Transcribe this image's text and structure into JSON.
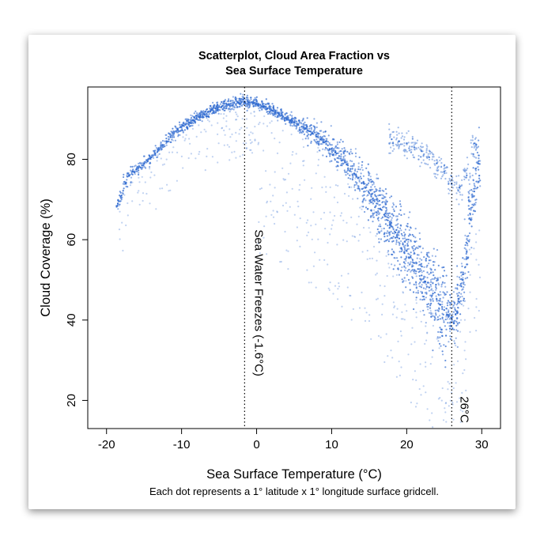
{
  "chart_data": {
    "type": "scatter",
    "title": [
      "Scatterplot, Cloud Area Fraction vs",
      "Sea Surface Temperature"
    ],
    "xlabel": "Sea Surface Temperature (°C)",
    "ylabel": "Cloud Coverage (%)",
    "caption": "Each dot represents a 1° latitude x 1° longitude surface gridcell.",
    "xlim": [
      -22.5,
      32.5
    ],
    "ylim": [
      13,
      98
    ],
    "x_ticks": [
      -20,
      -10,
      0,
      10,
      20,
      30
    ],
    "x_tick_labels": [
      "-20",
      "-10",
      "0",
      "10",
      "20",
      "30"
    ],
    "y_ticks": [
      20,
      40,
      60,
      80
    ],
    "y_tick_labels": [
      "20",
      "40",
      "60",
      "80"
    ],
    "grid": false,
    "point_color": "#2f6ad0",
    "reference_lines": [
      {
        "x": -1.6,
        "style": "dotted",
        "label": "Sea Water Freezes (-1.6°C)"
      },
      {
        "x": 26,
        "style": "dotted",
        "label": "26°C"
      }
    ],
    "series": [
      {
        "x": [
          -18.5,
          -18,
          -17.5,
          -17,
          -16.5,
          -16,
          -15.5,
          -15,
          -14.5,
          -14,
          -13.5,
          -13,
          -12.5,
          -12,
          -11.5,
          -11,
          -10.5,
          -10,
          -9.5,
          -9,
          -8.5,
          -8,
          -7.5,
          -7,
          -6.5,
          -6,
          -5.5,
          -5,
          -4.5,
          -4,
          -3.5,
          -3,
          -2.5,
          -2,
          -1.5,
          -1,
          -0.5,
          0,
          0.5,
          1,
          1.5,
          2,
          2.5,
          3,
          3.5,
          4,
          4.5,
          5,
          5.5,
          6,
          6.5,
          7,
          7.5,
          8,
          8.5,
          9,
          9.5,
          10,
          10.5,
          11,
          11.5,
          12,
          12.5,
          13,
          13.5,
          14,
          14.5,
          15,
          15.5,
          16,
          16.5,
          17,
          17.5,
          18,
          18.5,
          19,
          19.5,
          20,
          20.5,
          21,
          21.5,
          22,
          22.5,
          23,
          23.5,
          24,
          24.5,
          25,
          25.5,
          26,
          26.5,
          27,
          27.5,
          28,
          28.5,
          29,
          29.5
        ],
        "y": [
          69,
          71,
          74,
          76,
          77,
          77.5,
          78,
          79,
          79.5,
          80.5,
          81.5,
          82.5,
          83.5,
          84.5,
          85.5,
          86.5,
          87.3,
          88,
          88.6,
          89.2,
          89.8,
          90.3,
          90.8,
          91.3,
          91.8,
          92.3,
          92.7,
          93,
          93.3,
          93.6,
          93.8,
          94,
          94.1,
          94.2,
          94.2,
          94.2,
          94.1,
          93.9,
          93.6,
          93.2,
          92.7,
          92.2,
          91.7,
          91.2,
          90.7,
          90.2,
          89.7,
          89.2,
          88.7,
          88.1,
          87.6,
          87,
          86.4,
          85.7,
          85,
          84.3,
          83.5,
          82.7,
          81.8,
          80.8,
          79.8,
          78.7,
          77.6,
          76.5,
          75.3,
          74.1,
          72.9,
          71.6,
          70.3,
          69,
          67.6,
          66.2,
          64.8,
          63.3,
          61.8,
          60.3,
          58.8,
          57.2,
          55.7,
          54.2,
          52.7,
          51.1,
          49.6,
          48.1,
          46.6,
          45.2,
          43.8,
          42.5,
          41.3,
          40.5,
          41.5,
          44.5,
          50,
          57,
          65,
          72,
          79
        ]
      }
    ],
    "upper_branch": {
      "x": [
        18,
        19,
        20,
        21,
        22,
        23,
        24,
        25,
        26,
        27,
        28,
        29
      ],
      "y": [
        85,
        84.5,
        84,
        83,
        82,
        80.5,
        79,
        77,
        74,
        73,
        76,
        84
      ]
    }
  }
}
